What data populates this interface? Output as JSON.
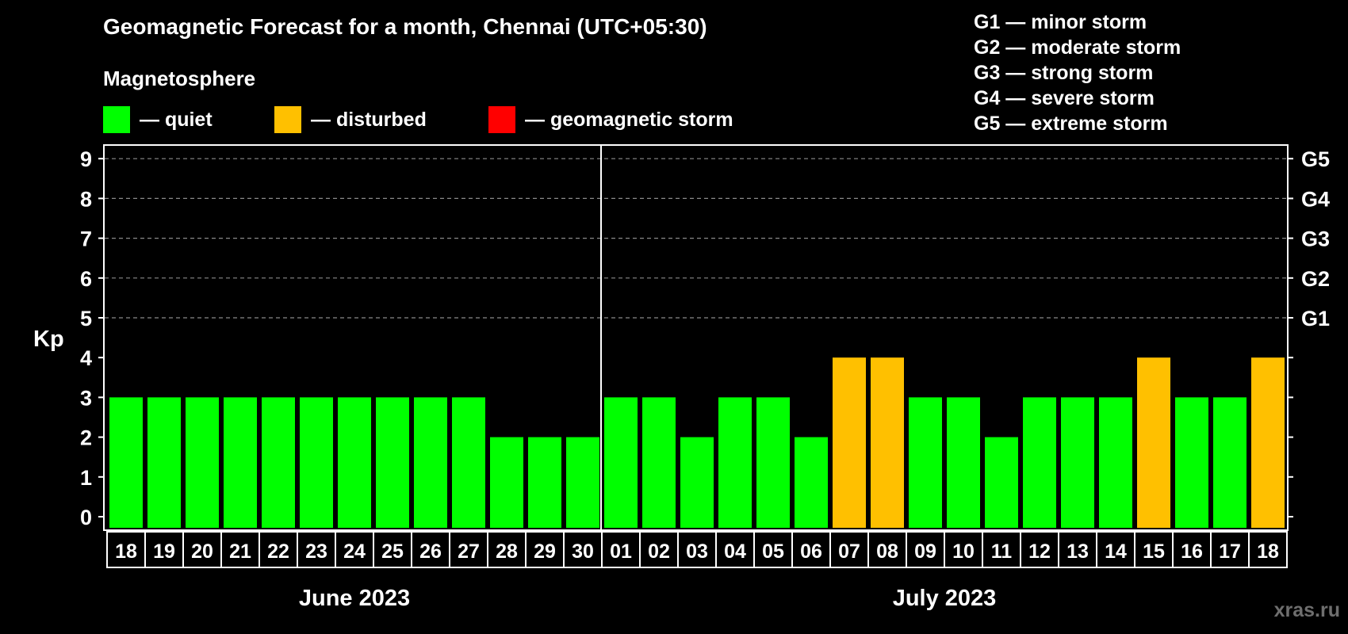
{
  "title": "Geomagnetic Forecast for a month, Chennai (UTC+05:30)",
  "section_label": "Magnetosphere",
  "legend": [
    {
      "label": "— quiet",
      "color": "#00ff00"
    },
    {
      "label": "— disturbed",
      "color": "#ffc000"
    },
    {
      "label": "— geomagnetic storm",
      "color": "#ff0000"
    }
  ],
  "storm_levels": [
    "G1 — minor storm",
    "G2 — moderate storm",
    "G3 — strong storm",
    "G4 — severe storm",
    "G5 — extreme storm"
  ],
  "watermark": "xras.ru",
  "chart_data": {
    "type": "bar",
    "title": "Geomagnetic Forecast for a month, Chennai (UTC+05:30)",
    "ylabel": "Kp",
    "ylim": [
      0,
      9
    ],
    "yticks": [
      0,
      1,
      2,
      3,
      4,
      5,
      6,
      7,
      8,
      9
    ],
    "right_axis": [
      {
        "kp": 5,
        "label": "G1"
      },
      {
        "kp": 6,
        "label": "G2"
      },
      {
        "kp": 7,
        "label": "G3"
      },
      {
        "kp": 8,
        "label": "G4"
      },
      {
        "kp": 9,
        "label": "G5"
      }
    ],
    "categories": [
      "18",
      "19",
      "20",
      "21",
      "22",
      "23",
      "24",
      "25",
      "26",
      "27",
      "28",
      "29",
      "30",
      "01",
      "02",
      "03",
      "04",
      "05",
      "06",
      "07",
      "08",
      "09",
      "10",
      "11",
      "12",
      "13",
      "14",
      "15",
      "16",
      "17",
      "18"
    ],
    "values": [
      3,
      3,
      3,
      3,
      3,
      3,
      3,
      3,
      3,
      3,
      2,
      2,
      2,
      3,
      3,
      2,
      3,
      3,
      2,
      4,
      4,
      3,
      3,
      2,
      3,
      3,
      3,
      4,
      3,
      3,
      4
    ],
    "status": [
      "quiet",
      "quiet",
      "quiet",
      "quiet",
      "quiet",
      "quiet",
      "quiet",
      "quiet",
      "quiet",
      "quiet",
      "quiet",
      "quiet",
      "quiet",
      "quiet",
      "quiet",
      "quiet",
      "quiet",
      "quiet",
      "quiet",
      "disturbed",
      "disturbed",
      "quiet",
      "quiet",
      "quiet",
      "quiet",
      "quiet",
      "quiet",
      "disturbed",
      "quiet",
      "quiet",
      "disturbed"
    ],
    "status_colors": {
      "quiet": "#00ff00",
      "disturbed": "#ffc000",
      "storm": "#ff0000"
    },
    "months": [
      {
        "label": "June 2023",
        "start_index": 0,
        "count": 13
      },
      {
        "label": "July 2023",
        "start_index": 13,
        "count": 18
      }
    ],
    "grid": true
  }
}
